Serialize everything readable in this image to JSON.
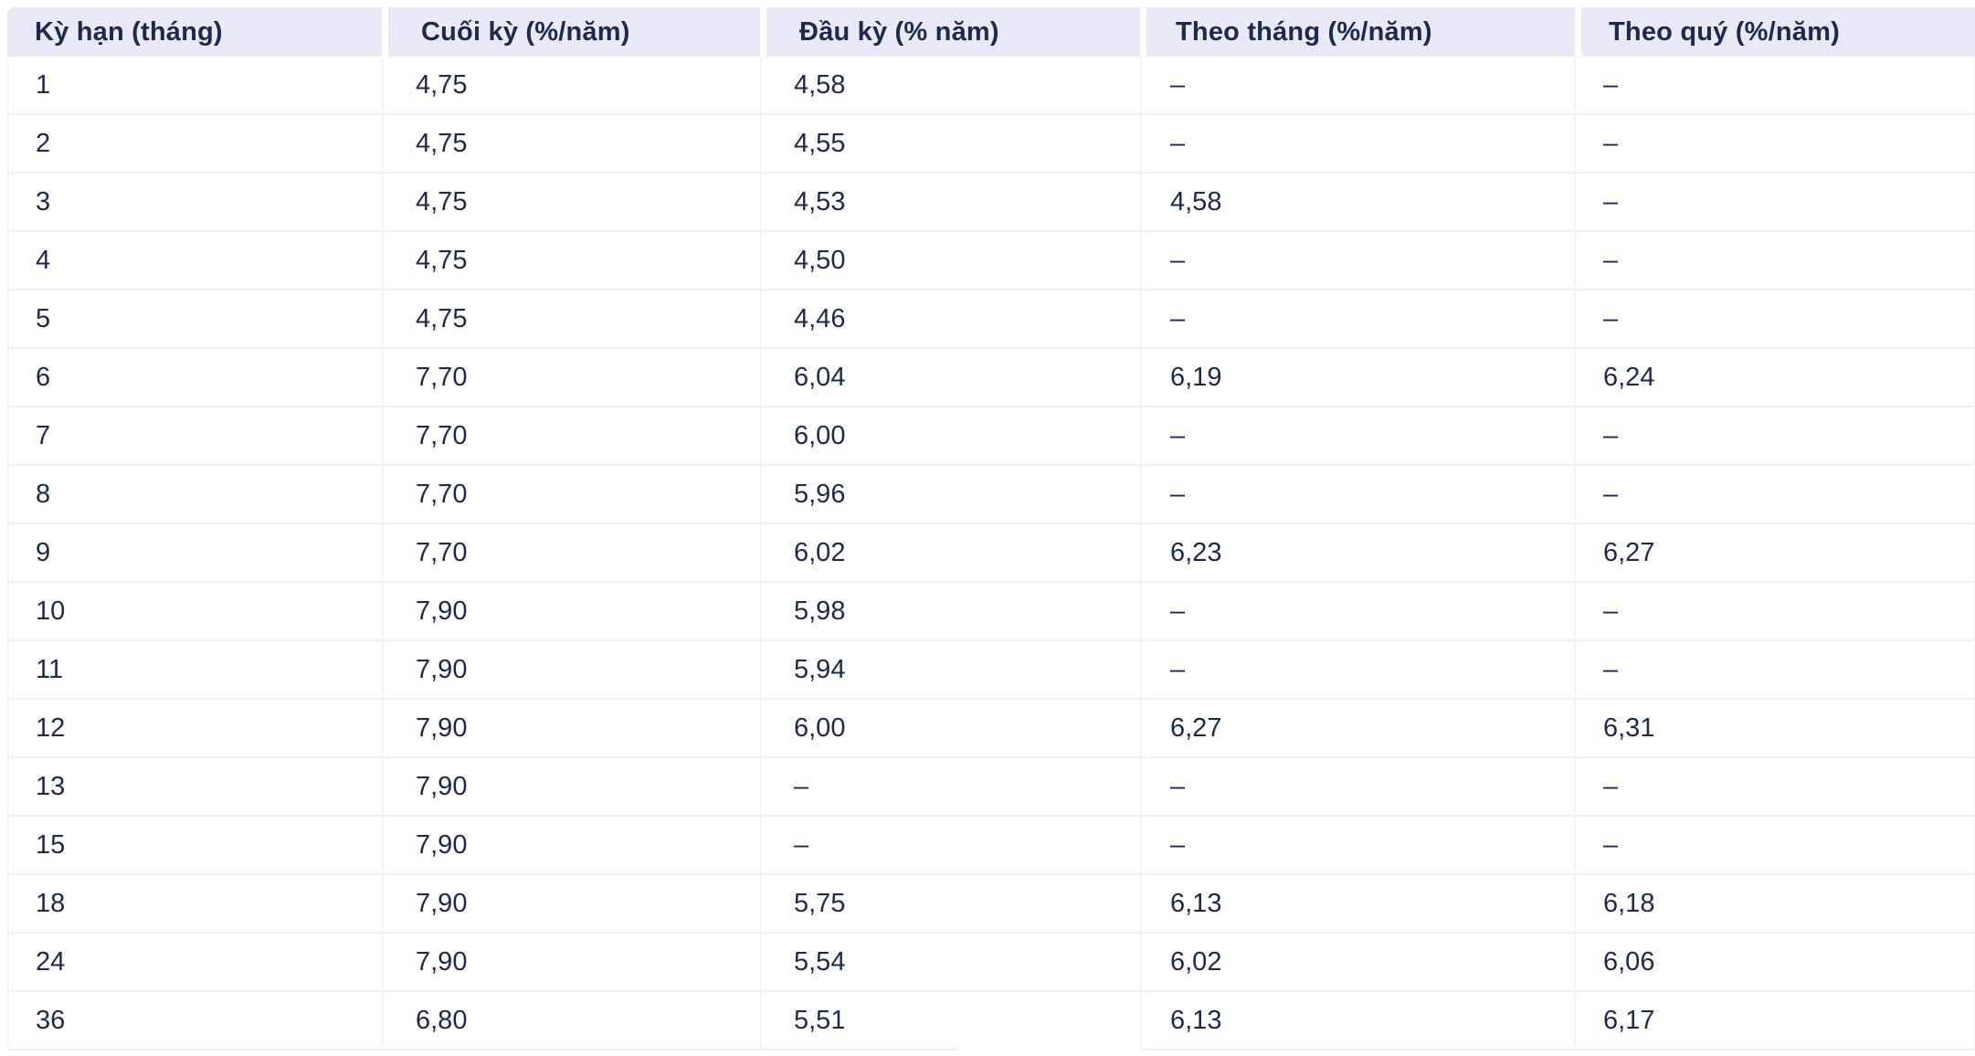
{
  "theme": {
    "header_bg": "#E9E9F8",
    "text_color": "#1B2A4D",
    "row_divider": "#F1F1F4",
    "col_divider": "#EFEFF3",
    "row_bg": "#FFFFFF",
    "page_bg": "#FFFFFF"
  },
  "chart_data": {
    "type": "table",
    "columns": [
      {
        "key": "term",
        "label": "Kỳ hạn (tháng)"
      },
      {
        "key": "end-of-term",
        "label": "Cuối kỳ (%/năm)"
      },
      {
        "key": "start-of-term",
        "label": "Đầu kỳ (% năm)"
      },
      {
        "key": "monthly",
        "label": "Theo tháng (%/năm)"
      },
      {
        "key": "quarterly",
        "label": "Theo quý (%/năm)"
      }
    ],
    "empty_marker": "–",
    "rows": [
      [
        "1",
        "4,75",
        "4,58",
        "–",
        "–"
      ],
      [
        "2",
        "4,75",
        "4,55",
        "–",
        "–"
      ],
      [
        "3",
        "4,75",
        "4,53",
        "4,58",
        "–"
      ],
      [
        "4",
        "4,75",
        "4,50",
        "–",
        "–"
      ],
      [
        "5",
        "4,75",
        "4,46",
        "–",
        "–"
      ],
      [
        "6",
        "7,70",
        "6,04",
        "6,19",
        "6,24"
      ],
      [
        "7",
        "7,70",
        "6,00",
        "–",
        "–"
      ],
      [
        "8",
        "7,70",
        "5,96",
        "–",
        "–"
      ],
      [
        "9",
        "7,70",
        "6,02",
        "6,23",
        "6,27"
      ],
      [
        "10",
        "7,90",
        "5,98",
        "–",
        "–"
      ],
      [
        "11",
        "7,90",
        "5,94",
        "–",
        "–"
      ],
      [
        "12",
        "7,90",
        "6,00",
        "6,27",
        "6,31"
      ],
      [
        "13",
        "7,90",
        "–",
        "–",
        "–"
      ],
      [
        "15",
        "7,90",
        "–",
        "–",
        "–"
      ],
      [
        "18",
        "7,90",
        "5,75",
        "6,13",
        "6,18"
      ],
      [
        "24",
        "7,90",
        "5,54",
        "6,02",
        "6,06"
      ],
      [
        "36",
        "6,80",
        "5,51",
        "6,13",
        "6,17"
      ]
    ]
  }
}
